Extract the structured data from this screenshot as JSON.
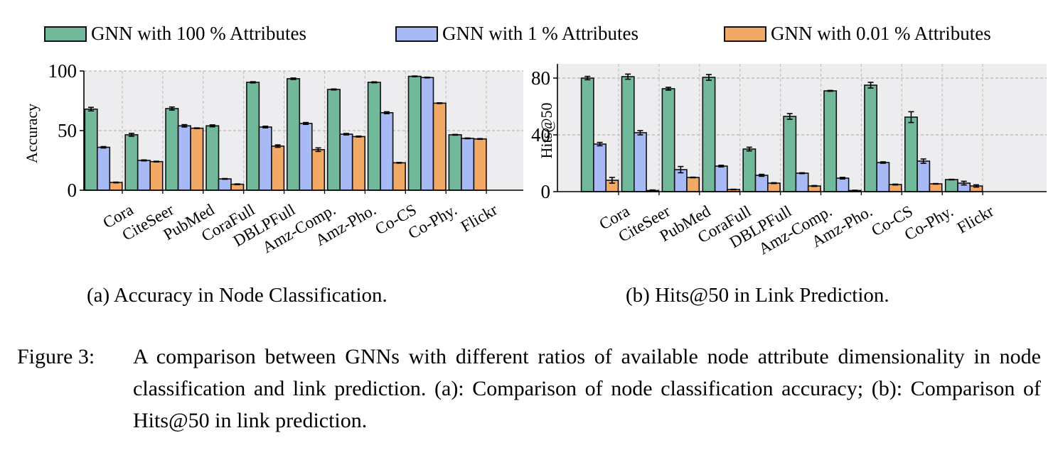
{
  "legend": [
    {
      "label": "GNN with 100 % Attributes",
      "color": "#72b89a"
    },
    {
      "label": "GNN with 1 % Attributes",
      "color": "#a8baf5"
    },
    {
      "label": "GNN with 0.01 % Attributes",
      "color": "#f2a966"
    }
  ],
  "chart_data": [
    {
      "type": "bar",
      "title": "",
      "xlabel": "",
      "ylabel": "Accuracy",
      "ylim": [
        0,
        100
      ],
      "yticks": [
        0,
        50,
        100
      ],
      "grid": true,
      "legend_placement": "top (shared)",
      "categories": [
        "Cora",
        "CiteSeer",
        "PubMed",
        "CoraFull",
        "DBLPFull",
        "Amz-Comp.",
        "Amz-Pho.",
        "Co-CS",
        "Co-Phy.",
        "Flickr"
      ],
      "series": [
        {
          "name": "GNN with 100 % Attributes",
          "values": [
            68,
            46.5,
            68.5,
            54,
            90.5,
            93.5,
            84.5,
            90.5,
            95.5,
            46.5
          ],
          "errors": [
            1.5,
            1.2,
            1.3,
            0.8,
            0.5,
            0.6,
            0.4,
            0.4,
            0.3,
            0.3
          ]
        },
        {
          "name": "GNN with 1 % Attributes",
          "values": [
            36,
            25,
            54,
            9.5,
            53,
            56,
            47,
            65,
            94.5,
            43.5
          ],
          "errors": [
            0.6,
            0.4,
            1.0,
            0.3,
            0.7,
            0.8,
            0.6,
            0.8,
            0.3,
            0.3
          ]
        },
        {
          "name": "GNN with 0.01 % Attributes",
          "values": [
            6.5,
            24,
            52,
            5,
            37,
            34,
            45,
            23,
            73,
            43
          ],
          "errors": [
            0.3,
            0.3,
            0.3,
            0.3,
            1.0,
            1.5,
            0.4,
            0.3,
            0.3,
            0.3
          ]
        }
      ],
      "caption": "(a) Accuracy in Node Classification."
    },
    {
      "type": "bar",
      "title": "",
      "xlabel": "",
      "ylabel": "Hits@50",
      "ylim": [
        0,
        88
      ],
      "yticks": [
        0,
        40,
        80
      ],
      "grid": true,
      "legend_placement": "top (shared)",
      "categories": [
        "Cora",
        "CiteSeer",
        "PubMed",
        "CoraFull",
        "DBLPFull",
        "Amz-Comp.",
        "Amz-Pho.",
        "Co-CS",
        "Co-Phy.",
        "Flickr"
      ],
      "series": [
        {
          "name": "GNN with 100 % Attributes",
          "values": [
            80,
            81,
            72.5,
            80.5,
            30,
            53,
            71,
            75,
            52.5,
            8.5
          ],
          "errors": [
            1.2,
            1.8,
            1.0,
            2.0,
            1.3,
            2.0,
            0.3,
            2.0,
            3.8,
            0.2
          ]
        },
        {
          "name": "GNN with 1 % Attributes",
          "values": [
            33.5,
            41.5,
            15.5,
            18,
            11.5,
            13,
            9.5,
            20.5,
            21.5,
            6
          ],
          "errors": [
            1.2,
            1.5,
            2.2,
            0.6,
            0.7,
            0.3,
            0.6,
            0.5,
            1.5,
            1.3
          ]
        },
        {
          "name": "GNN with 0.01 % Attributes",
          "values": [
            8,
            0.8,
            10,
            1.5,
            6,
            4,
            0.8,
            5,
            5.5,
            4
          ],
          "errors": [
            2.0,
            0.4,
            0.2,
            0.2,
            0.3,
            0.3,
            0.2,
            0.3,
            0.2,
            0.8
          ]
        }
      ],
      "caption": "(b) Hits@50 in Link Prediction."
    }
  ],
  "figure_caption": {
    "label": "Figure 3:",
    "text": "A comparison between GNNs with different ratios of available node attribute dimensionality in node classification and link prediction.  (a): Comparison of node classification accuracy; (b): Comparison of Hits@50 in link prediction."
  }
}
